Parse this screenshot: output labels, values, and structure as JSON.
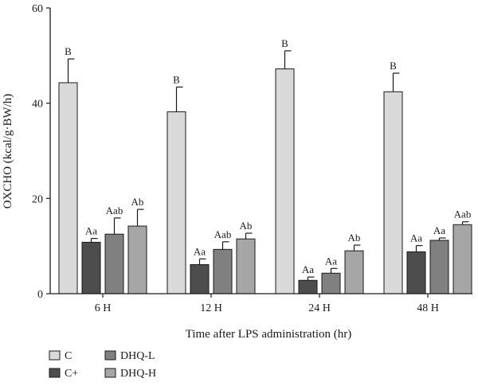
{
  "chart_data": {
    "type": "bar",
    "ylabel": "OXCHO (kcal/g·BW/h)",
    "xlabel": "Time after LPS administration (hr)",
    "ylim": [
      0,
      60
    ],
    "yticks": [
      0,
      20,
      40,
      60
    ],
    "categories": [
      "6 H",
      "12 H",
      "24 H",
      "48 H"
    ],
    "series": [
      {
        "name": "C",
        "color": "#d9d9d9",
        "values": [
          44.3,
          38.2,
          47.2,
          42.4
        ],
        "errors": [
          5.0,
          5.2,
          3.8,
          3.9
        ],
        "labels": [
          "B",
          "B",
          "B",
          "B"
        ]
      },
      {
        "name": "C+",
        "color": "#4d4d4d",
        "values": [
          10.8,
          6.1,
          2.8,
          8.8
        ],
        "errors": [
          0.8,
          1.2,
          0.7,
          1.3
        ],
        "labels": [
          "Aa",
          "Aa",
          "Aa",
          "Aa"
        ]
      },
      {
        "name": "DHQ-L",
        "color": "#808080",
        "values": [
          12.5,
          9.3,
          4.3,
          11.2
        ],
        "errors": [
          3.4,
          1.6,
          1.0,
          0.5
        ],
        "labels": [
          "Aab",
          "Aab",
          "Aa",
          "Aa"
        ]
      },
      {
        "name": "DHQ-H",
        "color": "#a6a6a6",
        "values": [
          14.2,
          11.5,
          9.0,
          14.5
        ],
        "errors": [
          3.5,
          1.2,
          1.2,
          0.6
        ],
        "labels": [
          "Ab",
          "Ab",
          "Ab",
          "Aab"
        ]
      }
    ],
    "legend": "bottom-left",
    "grid": false
  }
}
